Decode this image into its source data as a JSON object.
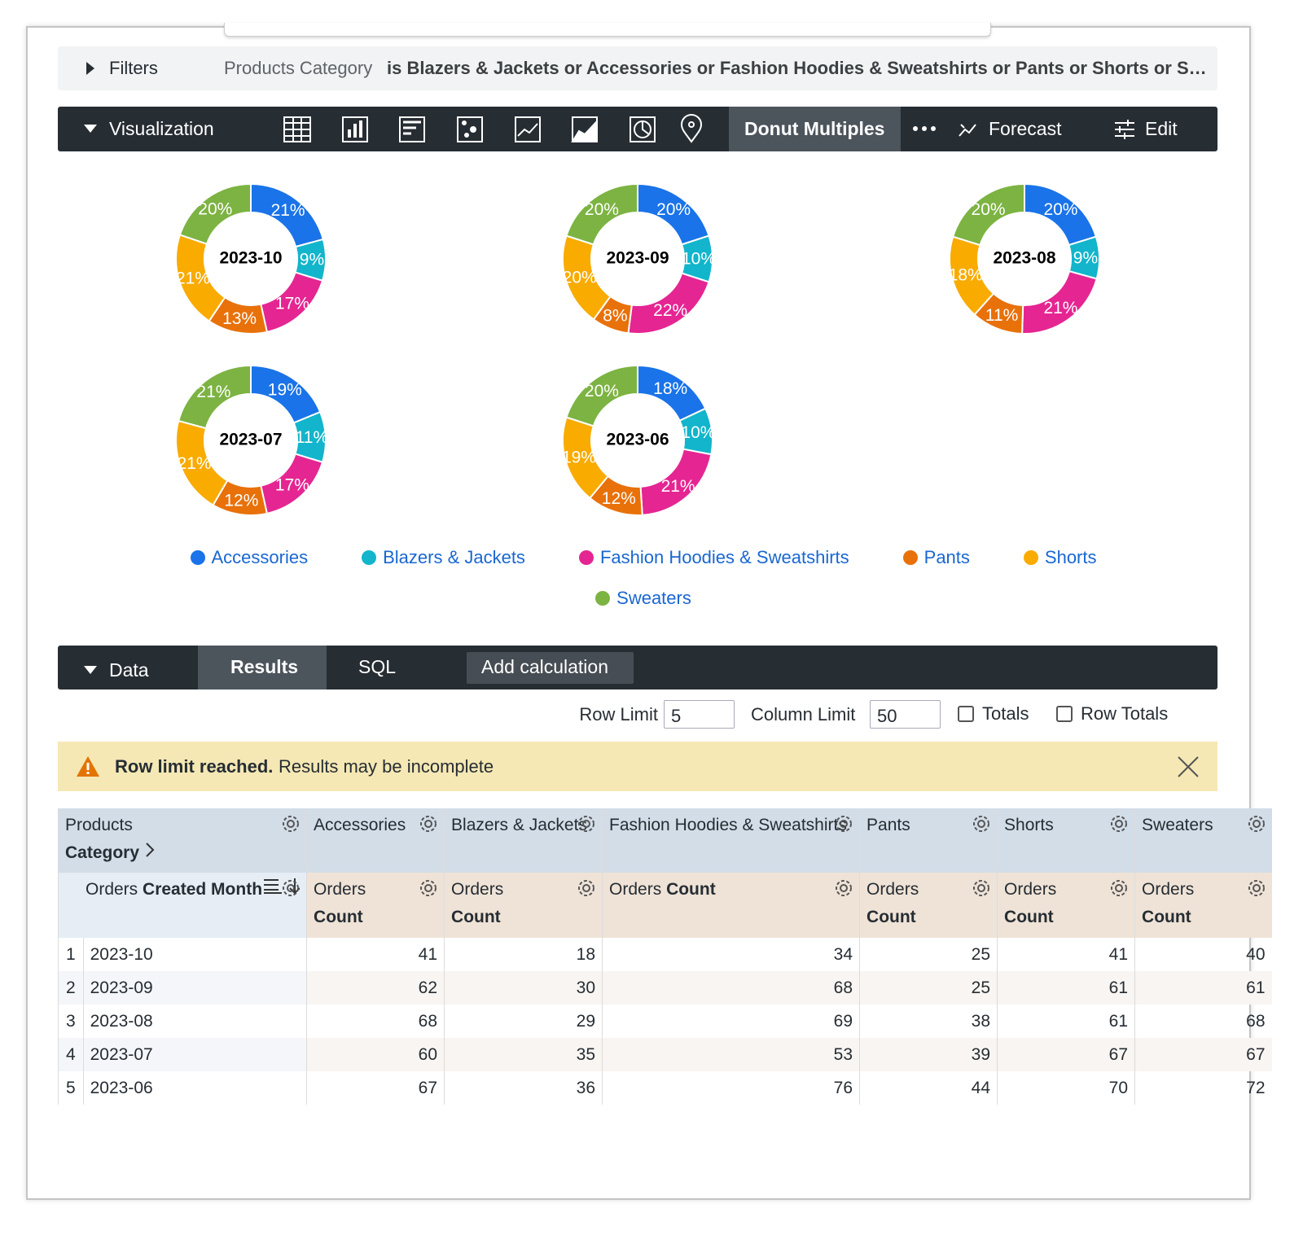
{
  "filters": {
    "label": "Filters",
    "field": "Products Category",
    "condition": "is Blazers & Jackets or Accessories or Fashion Hoodies & Sweatshirts or Pants or Shorts or S…"
  },
  "visualization": {
    "label": "Visualization",
    "active_type": "Donut Multiples",
    "forecast": "Forecast",
    "edit": "Edit"
  },
  "chart_data": {
    "type": "donut",
    "categories": [
      "Accessories",
      "Blazers & Jackets",
      "Fashion Hoodies & Sweatshirts",
      "Pants",
      "Shorts",
      "Sweaters"
    ],
    "colors": [
      "#1a73e8",
      "#12b5cb",
      "#e52592",
      "#e8710a",
      "#f9ab00",
      "#7cb342"
    ],
    "panels": [
      {
        "title": "2023-10",
        "values": [
          21,
          9,
          17,
          13,
          21,
          20
        ],
        "value_labels": [
          "21%",
          "9%",
          "17%",
          "13%",
          "21%",
          "20%"
        ]
      },
      {
        "title": "2023-09",
        "values": [
          20,
          10,
          22,
          8,
          20,
          20
        ],
        "value_labels": [
          "20%",
          "10%",
          "22%",
          "8%",
          "20%",
          "20%"
        ]
      },
      {
        "title": "2023-08",
        "values": [
          20,
          9,
          21,
          11,
          18,
          20
        ],
        "value_labels": [
          "20%",
          "9%",
          "21%",
          "11%",
          "18%",
          "20%"
        ]
      },
      {
        "title": "2023-07",
        "values": [
          19,
          11,
          17,
          12,
          21,
          21
        ],
        "value_labels": [
          "19%",
          "11%",
          "17%",
          "12%",
          "21%",
          "21%"
        ]
      },
      {
        "title": "2023-06",
        "values": [
          18,
          10,
          21,
          12,
          19,
          20
        ],
        "value_labels": [
          "18%",
          "10%",
          "21%",
          "12%",
          "19%",
          "20%"
        ]
      }
    ]
  },
  "data_panel": {
    "label": "Data",
    "tabs": [
      "Results",
      "SQL"
    ],
    "add_calculation": "Add calculation",
    "row_limit_label": "Row Limit",
    "row_limit": "5",
    "column_limit_label": "Column Limit",
    "column_limit": "50",
    "totals": "Totals",
    "row_totals": "Row Totals"
  },
  "warning": {
    "title": "Row limit reached.",
    "text": "Results may be incomplete"
  },
  "table": {
    "pivot_header": {
      "view": "Products",
      "field": "Category"
    },
    "dimension_header": {
      "view": "Orders",
      "field": "Created Month"
    },
    "measure_header": {
      "view": "Orders",
      "field": "Count"
    },
    "rows": [
      [
        1,
        "2023-10",
        41,
        18,
        34,
        25,
        41,
        40
      ],
      [
        2,
        "2023-09",
        62,
        30,
        68,
        25,
        61,
        61
      ],
      [
        3,
        "2023-08",
        68,
        29,
        69,
        38,
        61,
        68
      ],
      [
        4,
        "2023-07",
        60,
        35,
        53,
        39,
        67,
        67
      ],
      [
        5,
        "2023-06",
        67,
        36,
        76,
        44,
        70,
        72
      ]
    ]
  }
}
